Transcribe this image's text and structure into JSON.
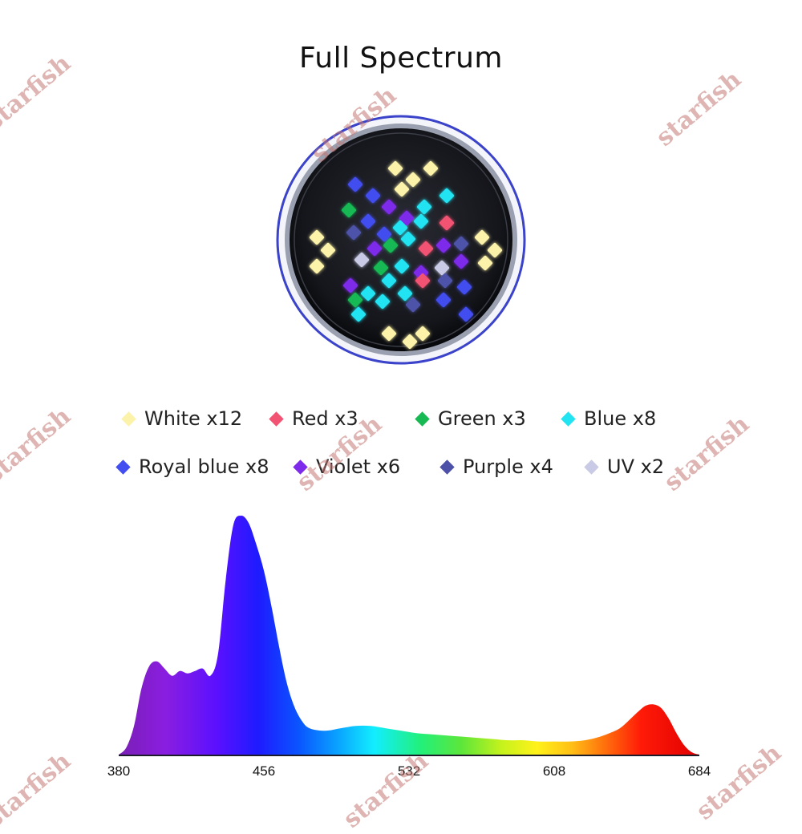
{
  "title": "Full Spectrum",
  "watermark": "starfish",
  "legend": [
    {
      "label": "White x12",
      "color": "#fcf2a9"
    },
    {
      "label": "Red x3",
      "color": "#f25373"
    },
    {
      "label": "Green x3",
      "color": "#17b953"
    },
    {
      "label": "Blue x8",
      "color": "#22e3f2"
    },
    {
      "label": "Royal blue x8",
      "color": "#434ef0"
    },
    {
      "label": "Violet x6",
      "color": "#7d2aea"
    },
    {
      "label": "Purple x4",
      "color": "#4d52a8"
    },
    {
      "label": "UV x2",
      "color": "#c9cbe6"
    }
  ],
  "chart_data": {
    "type": "area",
    "title": "",
    "xlabel": "",
    "ylabel": "",
    "xlim": [
      380,
      684
    ],
    "xticks": [
      380,
      456,
      532,
      608,
      684
    ],
    "ylim": [
      0,
      1
    ],
    "grid": false,
    "series": [
      {
        "x": [
          380,
          384,
          388,
          392,
          396,
          400,
          404,
          408,
          412,
          416,
          420,
          424,
          428,
          432,
          436,
          440,
          444,
          448,
          452,
          456,
          460,
          464,
          468,
          472,
          476,
          480,
          488,
          496,
          504,
          512,
          520,
          528,
          536,
          544,
          552,
          560,
          568,
          576,
          584,
          592,
          600,
          608,
          616,
          624,
          632,
          640,
          644,
          648,
          652,
          656,
          660,
          664,
          668,
          672,
          676,
          680,
          684
        ],
        "y": [
          0.0,
          0.03,
          0.12,
          0.28,
          0.37,
          0.39,
          0.36,
          0.33,
          0.35,
          0.34,
          0.35,
          0.36,
          0.33,
          0.42,
          0.73,
          0.96,
          1.0,
          0.97,
          0.88,
          0.77,
          0.62,
          0.45,
          0.3,
          0.2,
          0.14,
          0.11,
          0.1,
          0.11,
          0.12,
          0.12,
          0.11,
          0.1,
          0.09,
          0.085,
          0.08,
          0.075,
          0.07,
          0.065,
          0.06,
          0.06,
          0.055,
          0.055,
          0.055,
          0.06,
          0.075,
          0.1,
          0.12,
          0.15,
          0.18,
          0.205,
          0.21,
          0.195,
          0.15,
          0.09,
          0.04,
          0.01,
          0.0
        ]
      }
    ]
  }
}
